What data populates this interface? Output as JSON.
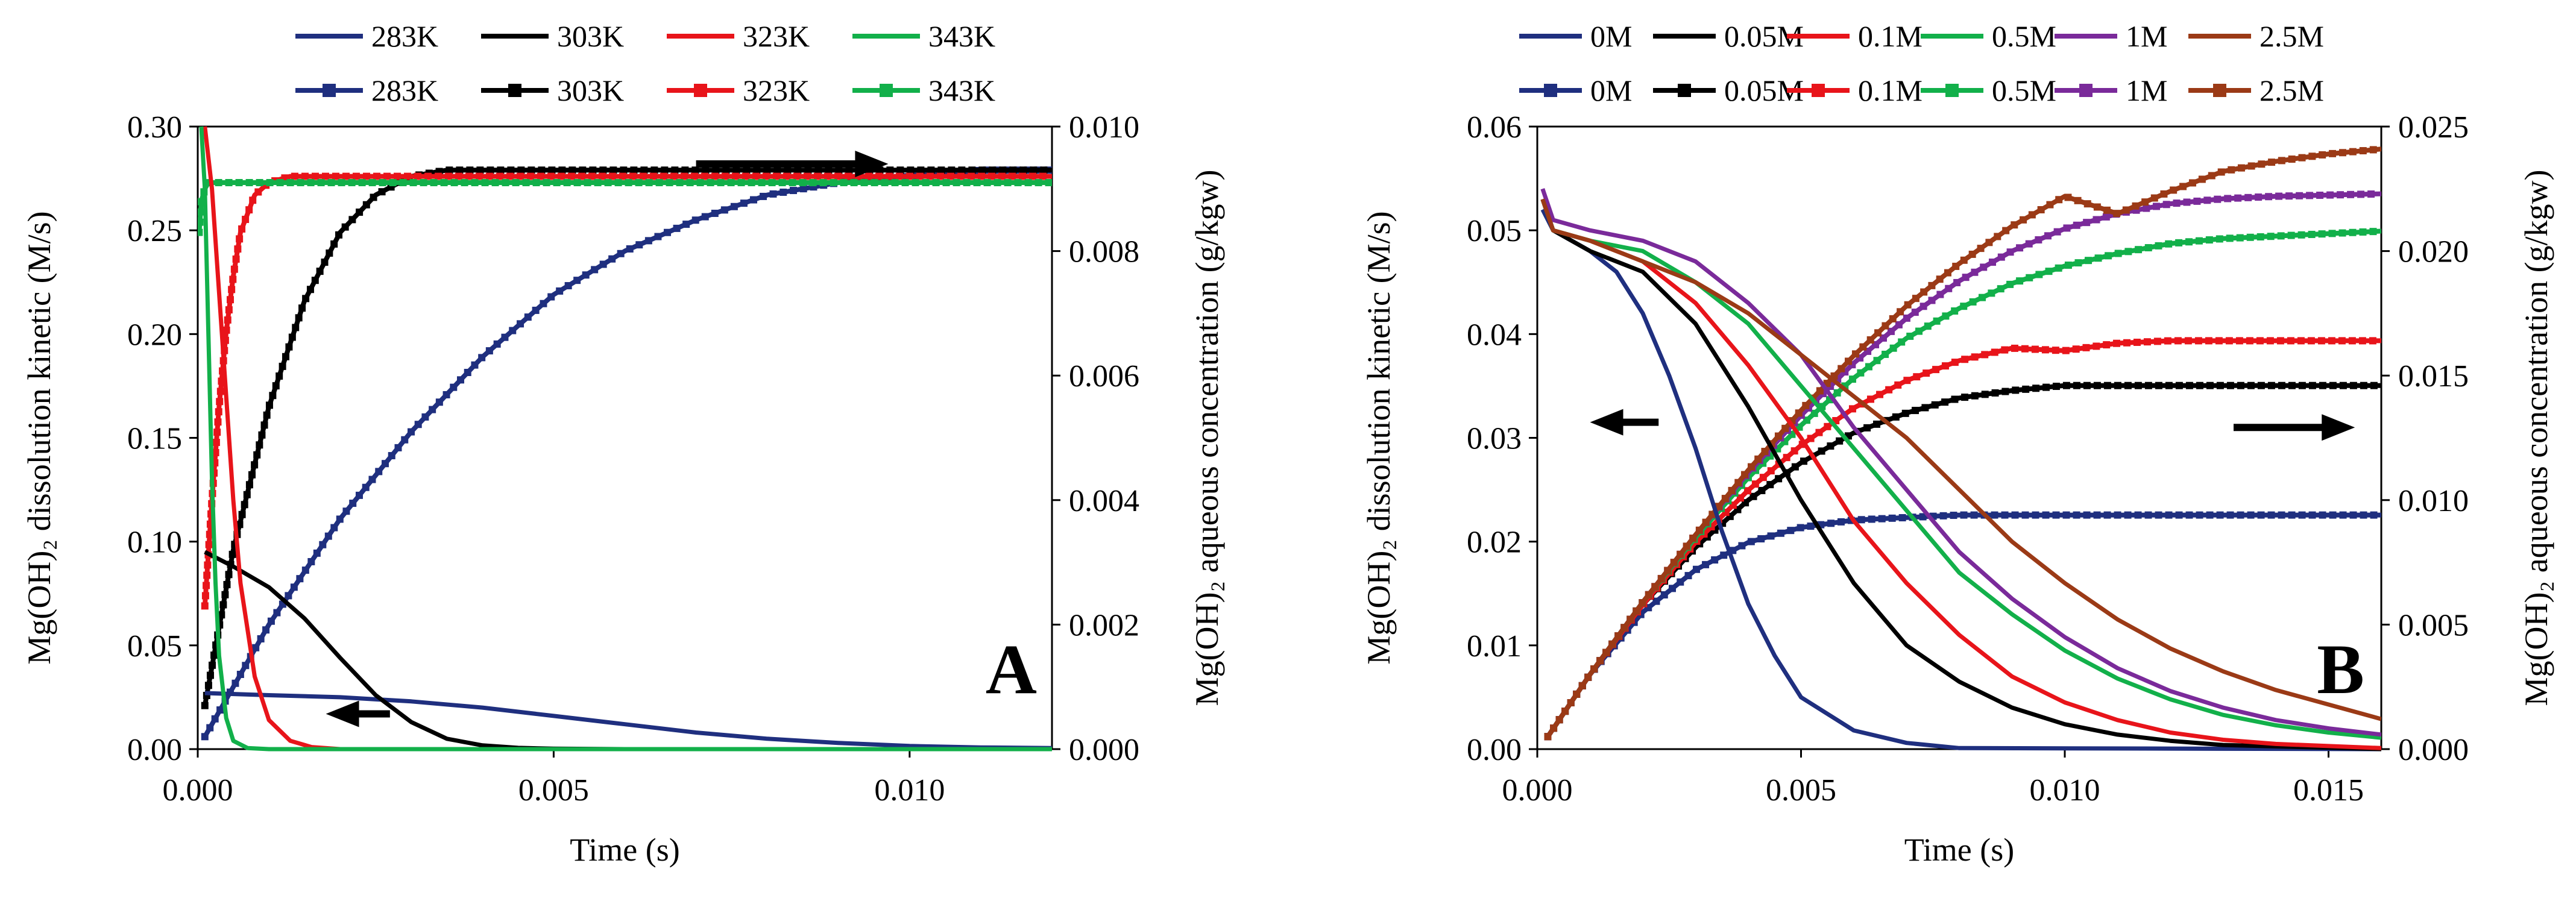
{
  "chart_data": [
    {
      "panel": "A",
      "type": "line",
      "xlabel": "Time (s)",
      "ylabel_left": "Mg(OH)₂ dissolution kinetic (M/s)",
      "ylabel_right": "Mg(OH)₂ aqueous concentration (g/kgw)",
      "xlim": [
        0,
        0.012
      ],
      "ylim_left": [
        0,
        0.3
      ],
      "ylim_right": [
        0,
        0.01
      ],
      "x_ticks": [
        "0.000",
        "0.005",
        "0.010"
      ],
      "x_tick_values": [
        0,
        0.005,
        0.01
      ],
      "yl_ticks": [
        "0.00",
        "0.05",
        "0.10",
        "0.15",
        "0.20",
        "0.25",
        "0.30"
      ],
      "yl_tick_values": [
        0,
        0.05,
        0.1,
        0.15,
        0.2,
        0.25,
        0.3
      ],
      "yr_ticks": [
        "0.000",
        "0.002",
        "0.004",
        "0.006",
        "0.008",
        "0.010"
      ],
      "yr_tick_values": [
        0,
        0.002,
        0.004,
        0.006,
        0.008,
        0.01
      ],
      "panel_letter": "A",
      "legend_row1": [
        "283K",
        "303K",
        "323K",
        "343K"
      ],
      "legend_row2": [
        "283K",
        "303K",
        "323K",
        "343K"
      ],
      "colors": [
        "#1f2f7f",
        "#000000",
        "#e8141a",
        "#12b04a"
      ],
      "arrows": [
        {
          "direction": "right",
          "x0": 0.007,
          "x1": 0.0097,
          "y": 0.0094,
          "axis": "right"
        },
        {
          "direction": "left",
          "x0": 0.0027,
          "x1": 0.0018,
          "y": 0.017,
          "axis": "left"
        }
      ],
      "kinetic_series": [
        {
          "name": "283K",
          "axis": "left",
          "x": [
            0.0001,
            0.001,
            0.002,
            0.003,
            0.004,
            0.005,
            0.006,
            0.007,
            0.008,
            0.009,
            0.01,
            0.011,
            0.012
          ],
          "y": [
            0.027,
            0.026,
            0.025,
            0.023,
            0.02,
            0.016,
            0.012,
            0.008,
            0.005,
            0.003,
            0.0015,
            0.0008,
            0.0005
          ]
        },
        {
          "name": "303K",
          "axis": "left",
          "x": [
            0.0001,
            0.0005,
            0.001,
            0.0015,
            0.002,
            0.0025,
            0.003,
            0.0035,
            0.004,
            0.0045,
            0.005,
            0.006,
            0.012
          ],
          "y": [
            0.095,
            0.088,
            0.078,
            0.063,
            0.044,
            0.026,
            0.013,
            0.005,
            0.0018,
            0.0006,
            0.0002,
            0.0,
            0.0
          ]
        },
        {
          "name": "323K",
          "axis": "left",
          "x": [
            0.0001,
            0.0002,
            0.0003,
            0.0004,
            0.0005,
            0.0006,
            0.0008,
            0.001,
            0.0013,
            0.0016,
            0.002,
            0.003,
            0.012
          ],
          "y": [
            0.3,
            0.27,
            0.22,
            0.17,
            0.12,
            0.08,
            0.035,
            0.014,
            0.004,
            0.001,
            0.0,
            0.0,
            0.0
          ]
        },
        {
          "name": "343K",
          "axis": "left",
          "x": [
            5e-05,
            0.0001,
            0.00015,
            0.0002,
            0.00025,
            0.0003,
            0.0004,
            0.0005,
            0.0007,
            0.001,
            0.012
          ],
          "y": [
            0.3,
            0.27,
            0.2,
            0.13,
            0.08,
            0.045,
            0.015,
            0.004,
            0.0005,
            0.0,
            0.0
          ]
        }
      ],
      "concentration_series": [
        {
          "name": "283K",
          "axis": "right",
          "x": [
            0.0001,
            0.001,
            0.002,
            0.003,
            0.004,
            0.005,
            0.006,
            0.007,
            0.008,
            0.009,
            0.01,
            0.011,
            0.012
          ],
          "y": [
            0.0002,
            0.002,
            0.0037,
            0.0051,
            0.0063,
            0.0073,
            0.008,
            0.0085,
            0.0089,
            0.0091,
            0.0092,
            0.0093,
            0.0093
          ]
        },
        {
          "name": "303K",
          "axis": "right",
          "x": [
            0.0001,
            0.0005,
            0.001,
            0.0015,
            0.002,
            0.0025,
            0.003,
            0.0035,
            0.004,
            0.005,
            0.006,
            0.012
          ],
          "y": [
            0.0007,
            0.0032,
            0.0055,
            0.0072,
            0.0083,
            0.0089,
            0.0092,
            0.0093,
            0.0093,
            0.0093,
            0.0093,
            0.0093
          ]
        },
        {
          "name": "323K",
          "axis": "right",
          "x": [
            0.0001,
            0.0002,
            0.0003,
            0.0004,
            0.0005,
            0.0006,
            0.0008,
            0.001,
            0.0013,
            0.0016,
            0.002,
            0.012
          ],
          "y": [
            0.0023,
            0.004,
            0.0055,
            0.0067,
            0.0076,
            0.0083,
            0.0089,
            0.0091,
            0.0092,
            0.0092,
            0.0092,
            0.0092
          ]
        },
        {
          "name": "343K",
          "axis": "right",
          "x": [
            2e-05,
            5e-05,
            0.0001,
            0.00015,
            0.0002,
            0.0003,
            0.0005,
            0.0008,
            0.001,
            0.012
          ],
          "y": [
            0.0083,
            0.0088,
            0.009,
            0.0091,
            0.0091,
            0.0091,
            0.0091,
            0.0091,
            0.0091,
            0.0091
          ]
        }
      ]
    },
    {
      "panel": "B",
      "type": "line",
      "xlabel": "Time (s)",
      "ylabel_left": "Mg(OH)₂ dissolution kinetic (M/s)",
      "ylabel_right": "Mg(OH)₂ aqueous concentration (g/kgw)",
      "xlim": [
        0,
        0.016
      ],
      "ylim_left": [
        0,
        0.06
      ],
      "ylim_right": [
        0,
        0.025
      ],
      "x_ticks": [
        "0.000",
        "0.005",
        "0.010",
        "0.015"
      ],
      "x_tick_values": [
        0,
        0.005,
        0.01,
        0.015
      ],
      "yl_ticks": [
        "0.00",
        "0.01",
        "0.02",
        "0.03",
        "0.04",
        "0.05",
        "0.06"
      ],
      "yl_tick_values": [
        0,
        0.01,
        0.02,
        0.03,
        0.04,
        0.05,
        0.06
      ],
      "yr_ticks": [
        "0.000",
        "0.005",
        "0.010",
        "0.015",
        "0.020",
        "0.025"
      ],
      "yr_tick_values": [
        0,
        0.005,
        0.01,
        0.015,
        0.02,
        0.025
      ],
      "panel_letter": "B",
      "legend_row1": [
        "0M",
        "0.05M",
        "0.1M",
        "0.5M",
        "1M",
        "2.5M"
      ],
      "legend_row2": [
        "0M",
        "0.05M",
        "0.1M",
        "0.5M",
        "1M",
        "2.5M"
      ],
      "colors": [
        "#1f2f7f",
        "#000000",
        "#e8141a",
        "#12b04a",
        "#7a2a9a",
        "#9b3a16"
      ],
      "arrows": [
        {
          "direction": "left",
          "x0": 0.0023,
          "x1": 0.001,
          "y": 0.0315,
          "axis": "left"
        },
        {
          "direction": "right",
          "x0": 0.0132,
          "x1": 0.0155,
          "y": 0.031,
          "axis": "left"
        }
      ],
      "kinetic_series": [
        {
          "name": "0M",
          "axis": "left",
          "x": [
            0.0001,
            0.0003,
            0.001,
            0.0015,
            0.002,
            0.0025,
            0.003,
            0.0035,
            0.004,
            0.0045,
            0.005,
            0.006,
            0.007,
            0.008,
            0.016
          ],
          "y": [
            0.052,
            0.05,
            0.048,
            0.046,
            0.042,
            0.036,
            0.029,
            0.021,
            0.014,
            0.009,
            0.005,
            0.0018,
            0.0006,
            0.0001,
            0.0
          ]
        },
        {
          "name": "0.05M",
          "axis": "left",
          "x": [
            0.0001,
            0.0003,
            0.001,
            0.002,
            0.003,
            0.004,
            0.005,
            0.006,
            0.007,
            0.008,
            0.009,
            0.01,
            0.011,
            0.012,
            0.013,
            0.016
          ],
          "y": [
            0.053,
            0.05,
            0.048,
            0.046,
            0.041,
            0.033,
            0.024,
            0.016,
            0.01,
            0.0065,
            0.004,
            0.0024,
            0.0014,
            0.0008,
            0.0004,
            0.0
          ]
        },
        {
          "name": "0.1M",
          "axis": "left",
          "x": [
            0.0001,
            0.0003,
            0.001,
            0.002,
            0.003,
            0.004,
            0.005,
            0.006,
            0.007,
            0.008,
            0.009,
            0.01,
            0.011,
            0.012,
            0.013,
            0.014,
            0.016
          ],
          "y": [
            0.053,
            0.05,
            0.049,
            0.047,
            0.043,
            0.037,
            0.03,
            0.022,
            0.016,
            0.011,
            0.007,
            0.0045,
            0.0028,
            0.0016,
            0.0009,
            0.0005,
            0.0001
          ]
        },
        {
          "name": "0.5M",
          "axis": "left",
          "x": [
            0.0001,
            0.0003,
            0.001,
            0.002,
            0.003,
            0.004,
            0.005,
            0.006,
            0.007,
            0.008,
            0.009,
            0.01,
            0.011,
            0.012,
            0.013,
            0.014,
            0.015,
            0.016
          ],
          "y": [
            0.053,
            0.05,
            0.049,
            0.048,
            0.045,
            0.041,
            0.035,
            0.029,
            0.023,
            0.017,
            0.013,
            0.0095,
            0.0068,
            0.0048,
            0.0033,
            0.0023,
            0.0016,
            0.0011
          ]
        },
        {
          "name": "1M",
          "axis": "left",
          "x": [
            0.0001,
            0.0003,
            0.001,
            0.002,
            0.003,
            0.004,
            0.005,
            0.006,
            0.007,
            0.008,
            0.009,
            0.01,
            0.011,
            0.012,
            0.013,
            0.014,
            0.015,
            0.016
          ],
          "y": [
            0.054,
            0.051,
            0.05,
            0.049,
            0.047,
            0.043,
            0.038,
            0.031,
            0.025,
            0.019,
            0.0145,
            0.0108,
            0.0078,
            0.0056,
            0.004,
            0.0028,
            0.002,
            0.0014
          ]
        },
        {
          "name": "2.5M",
          "axis": "left",
          "x": [
            0.0001,
            0.0003,
            0.001,
            0.002,
            0.003,
            0.004,
            0.005,
            0.006,
            0.007,
            0.008,
            0.009,
            0.01,
            0.011,
            0.012,
            0.013,
            0.014,
            0.015,
            0.016
          ],
          "y": [
            0.053,
            0.05,
            0.049,
            0.047,
            0.045,
            0.042,
            0.038,
            0.034,
            0.03,
            0.025,
            0.02,
            0.016,
            0.0125,
            0.0097,
            0.0075,
            0.0057,
            0.0043,
            0.0029
          ]
        }
      ],
      "concentration_series": [
        {
          "name": "0M",
          "axis": "right",
          "x": [
            0.0002,
            0.001,
            0.002,
            0.003,
            0.004,
            0.005,
            0.006,
            0.007,
            0.008,
            0.01,
            0.012,
            0.016
          ],
          "y": [
            0.0005,
            0.003,
            0.0055,
            0.0072,
            0.0083,
            0.0089,
            0.0092,
            0.0093,
            0.0094,
            0.0094,
            0.0094,
            0.0094
          ]
        },
        {
          "name": "0.05M",
          "axis": "right",
          "x": [
            0.0002,
            0.001,
            0.002,
            0.003,
            0.004,
            0.005,
            0.006,
            0.007,
            0.008,
            0.009,
            0.01,
            0.012,
            0.014,
            0.016
          ],
          "y": [
            0.0005,
            0.003,
            0.0058,
            0.0081,
            0.01,
            0.0115,
            0.0127,
            0.0135,
            0.0141,
            0.0144,
            0.0146,
            0.0146,
            0.0146,
            0.0146
          ]
        },
        {
          "name": "0.1M",
          "axis": "right",
          "x": [
            0.0002,
            0.001,
            0.002,
            0.003,
            0.004,
            0.005,
            0.006,
            0.007,
            0.008,
            0.009,
            0.01,
            0.011,
            0.012,
            0.014,
            0.016
          ],
          "y": [
            0.0005,
            0.003,
            0.0058,
            0.0083,
            0.0104,
            0.0122,
            0.0137,
            0.0148,
            0.0156,
            0.0161,
            0.016,
            0.0163,
            0.0164,
            0.0164,
            0.0164
          ]
        },
        {
          "name": "0.5M",
          "axis": "right",
          "x": [
            0.0002,
            0.001,
            0.002,
            0.003,
            0.004,
            0.005,
            0.006,
            0.007,
            0.008,
            0.009,
            0.01,
            0.011,
            0.012,
            0.013,
            0.014,
            0.016
          ],
          "y": [
            0.0005,
            0.003,
            0.0059,
            0.0085,
            0.0109,
            0.013,
            0.0149,
            0.0165,
            0.0177,
            0.0187,
            0.0194,
            0.0199,
            0.0203,
            0.0205,
            0.0206,
            0.0208
          ]
        },
        {
          "name": "1M",
          "axis": "right",
          "x": [
            0.0002,
            0.001,
            0.002,
            0.003,
            0.004,
            0.005,
            0.006,
            0.007,
            0.008,
            0.009,
            0.01,
            0.011,
            0.012,
            0.013,
            0.014,
            0.016
          ],
          "y": [
            0.0005,
            0.003,
            0.0059,
            0.0086,
            0.0111,
            0.0134,
            0.0155,
            0.0173,
            0.0188,
            0.02,
            0.0209,
            0.0215,
            0.0219,
            0.0221,
            0.0222,
            0.0223
          ]
        },
        {
          "name": "2.5M",
          "axis": "right",
          "x": [
            0.0002,
            0.001,
            0.002,
            0.003,
            0.004,
            0.005,
            0.006,
            0.007,
            0.008,
            0.009,
            0.01,
            0.011,
            0.012,
            0.013,
            0.014,
            0.015,
            0.016
          ],
          "y": [
            0.0005,
            0.003,
            0.0059,
            0.0086,
            0.0112,
            0.0136,
            0.0158,
            0.0178,
            0.0195,
            0.021,
            0.0222,
            0.0215,
            0.0224,
            0.0232,
            0.0236,
            0.0239,
            0.0241
          ]
        }
      ]
    }
  ]
}
